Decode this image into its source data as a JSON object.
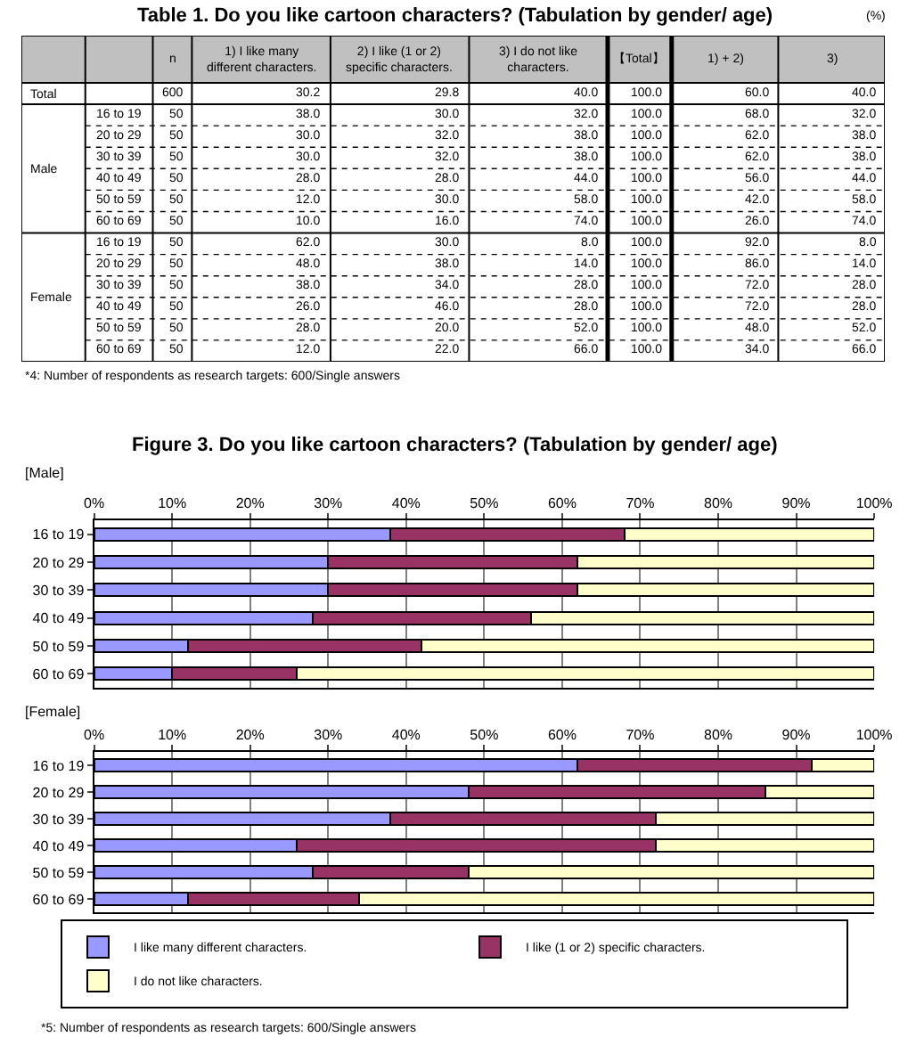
{
  "chart_data": [
    {
      "type": "other",
      "title": "Table 1. Do you like cartoon characters? (Tabulation by gender/ age)",
      "annotations": [
        "(%)",
        "*4: Number of respondents as research targets: 600/Single answers"
      ],
      "categories": [
        "n",
        "1) I like many different characters.",
        "2) I like (1 or 2) specific characters.",
        "3) I do not like characters.",
        "【Total】",
        "1) + 2)",
        "3)"
      ],
      "y_categories": [
        "Total",
        null,
        null,
        "Male",
        null,
        null,
        null,
        null,
        null,
        "Female",
        null,
        null,
        null
      ],
      "y2_categories": [
        null,
        "16 to 19",
        "20 to 29",
        "30 to 39",
        "40 to 49",
        "50 to 59",
        "60 to 69",
        "16 to 19",
        "20 to 29",
        "30 to 39",
        "40 to 49",
        "50 to 59",
        "60 to 69"
      ],
      "cell_labels": [
        [
          "600",
          "30.2",
          "29.8",
          "40.0",
          "100.0",
          "60.0",
          "40.0"
        ],
        [
          "50",
          "38.0",
          "30.0",
          "32.0",
          "100.0",
          "68.0",
          "32.0"
        ],
        [
          "50",
          "30.0",
          "32.0",
          "38.0",
          "100.0",
          "62.0",
          "38.0"
        ],
        [
          "50",
          "30.0",
          "32.0",
          "38.0",
          "100.0",
          "62.0",
          "38.0"
        ],
        [
          "50",
          "28.0",
          "28.0",
          "44.0",
          "100.0",
          "56.0",
          "44.0"
        ],
        [
          "50",
          "12.0",
          "30.0",
          "58.0",
          "100.0",
          "42.0",
          "58.0"
        ],
        [
          "50",
          "10.0",
          "16.0",
          "74.0",
          "100.0",
          "26.0",
          "74.0"
        ],
        [
          "50",
          "62.0",
          "30.0",
          "8.0",
          "100.0",
          "92.0",
          "8.0"
        ],
        [
          "50",
          "48.0",
          "38.0",
          "14.0",
          "100.0",
          "86.0",
          "14.0"
        ],
        [
          "50",
          "38.0",
          "34.0",
          "28.0",
          "100.0",
          "72.0",
          "28.0"
        ],
        [
          "50",
          "26.0",
          "46.0",
          "28.0",
          "100.0",
          "72.0",
          "28.0"
        ],
        [
          "50",
          "28.0",
          "20.0",
          "52.0",
          "100.0",
          "48.0",
          "52.0"
        ],
        [
          "50",
          "12.0",
          "22.0",
          "66.0",
          "100.0",
          "34.0",
          "66.0"
        ]
      ]
    },
    {
      "type": "bar",
      "orientation": "horizontal",
      "stacked": true,
      "title": "Figure 3. Do you like cartoon characters? (Tabulation by gender/ age)",
      "subtitle": "[Male]",
      "grid": "x",
      "categories": [
        "16 to 19",
        "20 to 29",
        "30 to 39",
        "40 to 49",
        "50 to 59",
        "60 to 69"
      ],
      "xlim": [
        0,
        100
      ],
      "xticks": [
        {
          "value": 0,
          "label": "0%"
        },
        {
          "value": 10,
          "label": "10%"
        },
        {
          "value": 20,
          "label": "20%"
        },
        {
          "value": 30,
          "label": "30%"
        },
        {
          "value": 40,
          "label": "40%"
        },
        {
          "value": 50,
          "label": "50%"
        },
        {
          "value": 60,
          "label": "60%"
        },
        {
          "value": 70,
          "label": "70%"
        },
        {
          "value": 80,
          "label": "80%"
        },
        {
          "value": 90,
          "label": "90%"
        },
        {
          "value": 100,
          "label": "100%"
        }
      ],
      "series": [
        {
          "color": "#9999ff",
          "values": [
            38,
            30,
            30,
            28,
            12,
            10
          ]
        },
        {
          "color": "#993366",
          "values": [
            30,
            32,
            32,
            28,
            30,
            16
          ]
        },
        {
          "color": "#ffffcc",
          "values": [
            32,
            38,
            38,
            44,
            58,
            74
          ]
        }
      ]
    },
    {
      "type": "bar",
      "orientation": "horizontal",
      "stacked": true,
      "subtitle": "[Female]",
      "grid": "x",
      "legend": "bottom",
      "categories": [
        "16 to 19",
        "20 to 29",
        "30 to 39",
        "40 to 49",
        "50 to 59",
        "60 to 69"
      ],
      "xlim": [
        0,
        100
      ],
      "xticks": [
        {
          "value": 0,
          "label": "0%"
        },
        {
          "value": 10,
          "label": "10%"
        },
        {
          "value": 20,
          "label": "20%"
        },
        {
          "value": 30,
          "label": "30%"
        },
        {
          "value": 40,
          "label": "40%"
        },
        {
          "value": 50,
          "label": "50%"
        },
        {
          "value": 60,
          "label": "60%"
        },
        {
          "value": 70,
          "label": "70%"
        },
        {
          "value": 80,
          "label": "80%"
        },
        {
          "value": 90,
          "label": "90%"
        },
        {
          "value": 100,
          "label": "100%"
        }
      ],
      "series": [
        {
          "name": "I like many different characters.",
          "color": "#9999ff",
          "values": [
            62,
            48,
            38,
            26,
            28,
            12
          ]
        },
        {
          "name": "I like (1 or 2) specific characters.",
          "color": "#993366",
          "values": [
            30,
            38,
            34,
            46,
            20,
            22
          ]
        },
        {
          "name": "I do not like characters.",
          "color": "#ffffcc",
          "values": [
            8,
            14,
            28,
            28,
            52,
            66
          ]
        }
      ],
      "annotations": [
        "*5: Number of respondents as research targets: 600/Single answers"
      ]
    }
  ]
}
